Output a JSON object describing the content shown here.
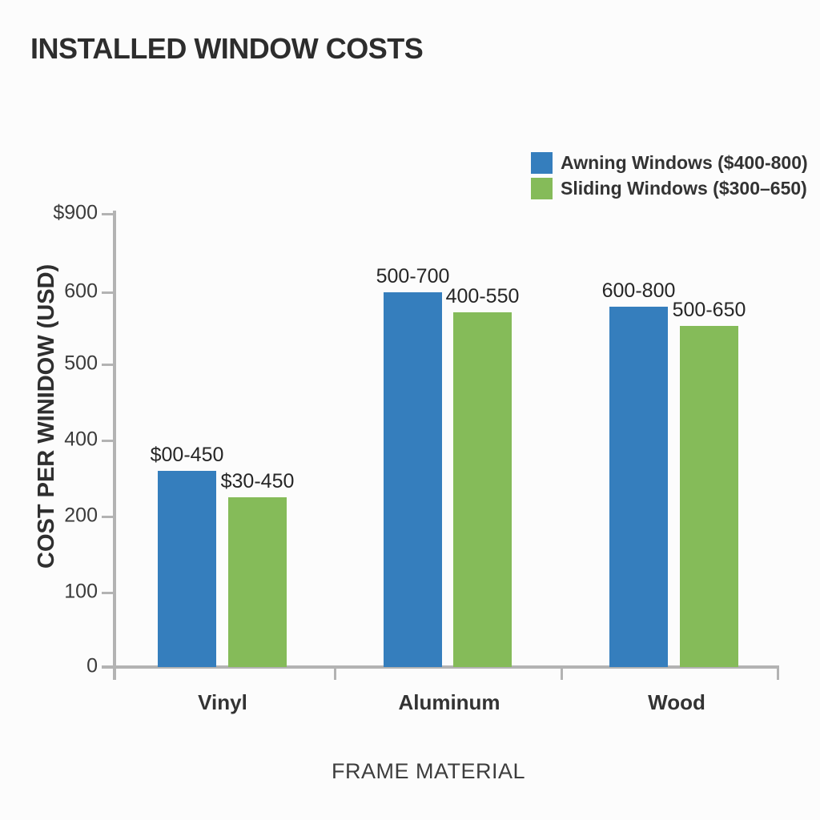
{
  "chart_data": {
    "type": "bar",
    "title": "INSTALLED WINDOW COSTS",
    "xlabel": "FRAME MATERIAL",
    "ylabel": "COST PER WINIDOW (USD)",
    "categories": [
      "Vinyl",
      "Aluminum",
      "Wood"
    ],
    "y_ticks_top_to_bottom": [
      "$900",
      "600",
      "500",
      "400",
      "200",
      "100",
      "0"
    ],
    "axis_color": "#b3b3b3",
    "grid": false,
    "legend_position": "top-right",
    "series": [
      {
        "name": "Awning Windows ($400-800)",
        "color": "#357ebd",
        "bar_labels": [
          "$00-450",
          "500-700",
          "600-800"
        ],
        "height_pct_of_plot": [
          43.3,
          82.7,
          79.5
        ],
        "values_est_usd": [
          320,
          600,
          580
        ]
      },
      {
        "name": "Sliding Windows ($300–650)",
        "color": "#85bb59",
        "bar_labels": [
          "$30-450",
          "400-550",
          "500-650"
        ],
        "height_pct_of_plot": [
          37.5,
          78.3,
          75.3
        ],
        "values_est_usd": [
          250,
          570,
          555
        ]
      }
    ]
  }
}
